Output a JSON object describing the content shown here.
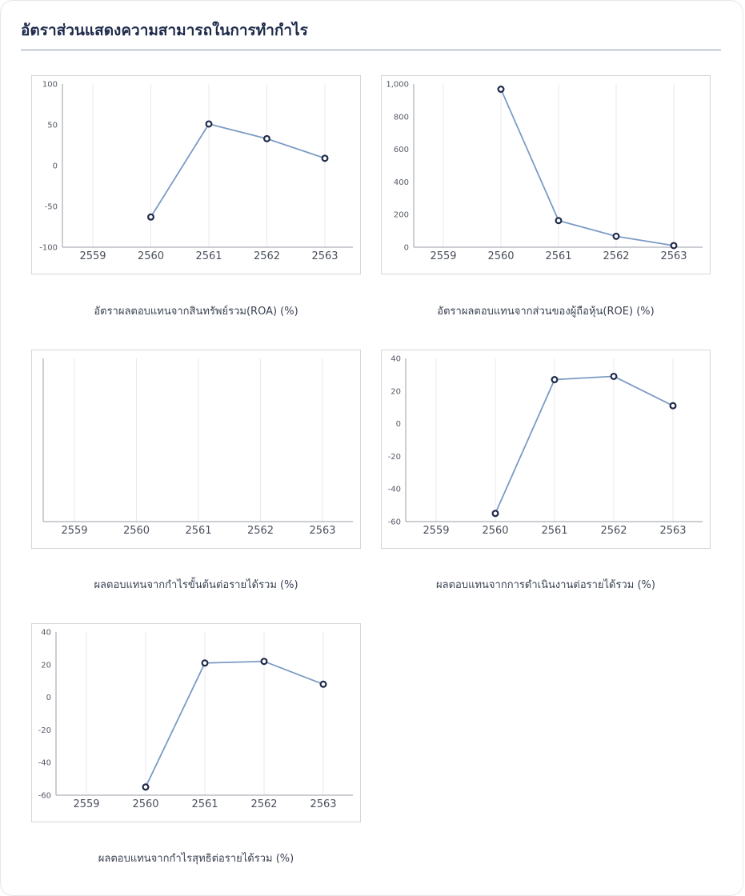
{
  "section": {
    "title": "อัตราส่วนแสดงความสามารถในการทำกำไร"
  },
  "colors": {
    "line": "#7b9bc4",
    "marker_stroke": "#1e2a4a",
    "grid": "#e8e9ec",
    "axis": "#9a9ea8",
    "title_rule": "#8c96b3"
  },
  "chart_data": [
    {
      "type": "line",
      "title": "อัตราผลตอบแทนจากสินทรัพย์รวม(ROA) (%)",
      "categories": [
        "2559",
        "2560",
        "2561",
        "2562",
        "2563"
      ],
      "values": [
        null,
        -63,
        51,
        33,
        9
      ],
      "ylim": [
        -100,
        100
      ],
      "yticks": [
        100,
        50,
        0,
        -50,
        -100
      ],
      "ytick_labels": [
        "100",
        "50",
        "0",
        "-50",
        "-100"
      ],
      "grid": "vertical"
    },
    {
      "type": "line",
      "title": "อัตราผลตอบแทนจากส่วนของผู้ถือหุ้น(ROE) (%)",
      "categories": [
        "2559",
        "2560",
        "2561",
        "2562",
        "2563"
      ],
      "values": [
        null,
        968,
        163,
        67,
        10
      ],
      "ylim": [
        0,
        1000
      ],
      "yticks": [
        1000,
        800,
        600,
        400,
        200,
        0
      ],
      "ytick_labels": [
        "1,000",
        "800",
        "600",
        "400",
        "200",
        "0"
      ],
      "grid": "vertical"
    },
    {
      "type": "line",
      "title": "ผลตอบแทนจากกำไรขั้นต้นต่อรายได้รวม (%)",
      "categories": [
        "2559",
        "2560",
        "2561",
        "2562",
        "2563"
      ],
      "values": [
        null,
        null,
        null,
        null,
        null
      ],
      "yticks": [],
      "ytick_labels": [],
      "grid": "vertical"
    },
    {
      "type": "line",
      "title": "ผลตอบแทนจากการดำเนินงานต่อรายได้รวม (%)",
      "categories": [
        "2559",
        "2560",
        "2561",
        "2562",
        "2563"
      ],
      "values": [
        null,
        -55,
        27,
        29,
        11
      ],
      "ylim": [
        -60,
        40
      ],
      "yticks": [
        40,
        20,
        0,
        -20,
        -40,
        -60
      ],
      "ytick_labels": [
        "40",
        "20",
        "0",
        "-20",
        "-40",
        "-60"
      ],
      "grid": "vertical"
    },
    {
      "type": "line",
      "title": "ผลตอบแทนจากกำไรสุทธิต่อรายได้รวม (%)",
      "categories": [
        "2559",
        "2560",
        "2561",
        "2562",
        "2563"
      ],
      "values": [
        null,
        -55,
        21,
        22,
        8
      ],
      "ylim": [
        -60,
        40
      ],
      "yticks": [
        40,
        20,
        0,
        -20,
        -40,
        -60
      ],
      "ytick_labels": [
        "40",
        "20",
        "0",
        "-20",
        "-40",
        "-60"
      ],
      "grid": "vertical"
    }
  ]
}
